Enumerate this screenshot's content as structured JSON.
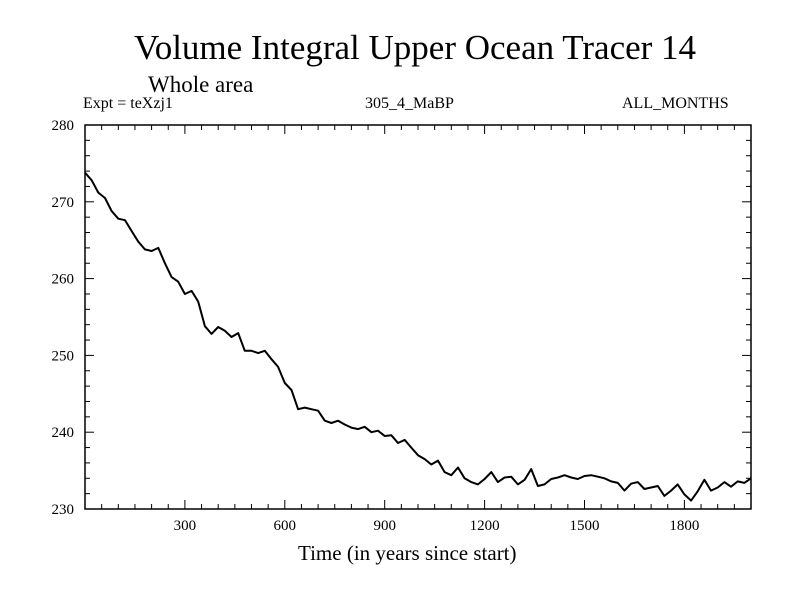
{
  "chart_data": {
    "type": "line",
    "title": "Volume Integral Upper Ocean Tracer 14",
    "subtitle": "Whole area",
    "left_label": "Expt = teXzj1",
    "center_label": "305_4_MaBP",
    "right_label": "ALL_MONTHS",
    "xlabel": "Time (in years since start)",
    "ylabel": "",
    "xlim": [
      0,
      2000
    ],
    "ylim": [
      230,
      280
    ],
    "x_ticks": [
      300,
      600,
      900,
      1200,
      1500,
      1800
    ],
    "y_ticks": [
      230,
      240,
      250,
      260,
      270,
      280
    ],
    "grid": false,
    "series": [
      {
        "name": "Upper Ocean Tracer 14",
        "color": "#000000",
        "x": [
          0,
          20,
          40,
          60,
          80,
          100,
          120,
          140,
          160,
          180,
          200,
          220,
          240,
          260,
          280,
          300,
          320,
          340,
          360,
          380,
          400,
          420,
          440,
          460,
          480,
          500,
          520,
          540,
          560,
          580,
          600,
          620,
          640,
          660,
          680,
          700,
          720,
          740,
          760,
          780,
          800,
          820,
          840,
          860,
          880,
          900,
          920,
          940,
          960,
          980,
          1000,
          1020,
          1040,
          1060,
          1080,
          1100,
          1120,
          1140,
          1160,
          1180,
          1200,
          1220,
          1240,
          1260,
          1280,
          1300,
          1320,
          1340,
          1360,
          1380,
          1400,
          1420,
          1440,
          1460,
          1480,
          1500,
          1520,
          1540,
          1560,
          1580,
          1600,
          1620,
          1640,
          1660,
          1680,
          1700,
          1720,
          1740,
          1760,
          1780,
          1800,
          1820,
          1840,
          1860,
          1880,
          1900,
          1920,
          1940,
          1960,
          1980,
          2000
        ],
        "values": [
          273.8,
          272.8,
          271.2,
          270.5,
          268.8,
          267.8,
          267.6,
          266.2,
          264.8,
          263.8,
          263.6,
          264.0,
          262.0,
          260.2,
          259.6,
          258.0,
          258.4,
          257.0,
          253.8,
          252.8,
          253.7,
          253.2,
          252.4,
          252.9,
          250.6,
          250.6,
          250.3,
          250.6,
          249.5,
          248.5,
          246.4,
          245.5,
          243.0,
          243.2,
          243.0,
          242.8,
          241.5,
          241.2,
          241.5,
          241.0,
          240.6,
          240.4,
          240.7,
          240.0,
          240.2,
          239.5,
          239.6,
          238.6,
          239.0,
          238.0,
          237.0,
          236.5,
          235.8,
          236.3,
          234.8,
          234.4,
          235.4,
          234.0,
          233.5,
          233.2,
          233.9,
          234.8,
          233.5,
          234.1,
          234.2,
          233.2,
          233.8,
          235.2,
          233.0,
          233.2,
          233.9,
          234.1,
          234.4,
          234.1,
          233.9,
          234.3,
          234.4,
          234.2,
          234.0,
          233.6,
          233.4,
          232.4,
          233.3,
          233.5,
          232.6,
          232.8,
          233.0,
          231.7,
          232.4,
          233.2,
          231.9,
          231.1,
          232.3,
          233.8,
          232.4,
          232.8,
          233.5,
          232.9,
          233.6,
          233.4,
          234.0
        ]
      }
    ]
  }
}
